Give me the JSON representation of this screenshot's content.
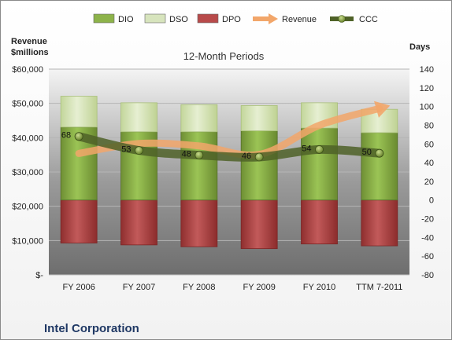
{
  "company": "Intel Corporation",
  "chart_data": {
    "type": "bar",
    "title": "12-Month Periods",
    "left_axis_label": "Revenue\n$millions",
    "right_axis_label": "Days",
    "categories": [
      "FY 2006",
      "FY 2007",
      "FY 2008",
      "FY 2009",
      "FY 2010",
      "TTM 7-2011"
    ],
    "legend_position": "top",
    "legend": [
      {
        "name": "DIO",
        "kind": "bar",
        "color": "#8db34a"
      },
      {
        "name": "DSO",
        "kind": "bar",
        "color": "#d7e4bd"
      },
      {
        "name": "DPO",
        "kind": "bar",
        "color": "#b84a4a"
      },
      {
        "name": "Revenue",
        "kind": "arrow",
        "color": "#f2a66a"
      },
      {
        "name": "CCC",
        "kind": "line",
        "color": "#4f6228"
      }
    ],
    "left_axis": {
      "min": 0,
      "max": 60000,
      "step": 10000,
      "tick_labels": [
        "$-",
        "$10,000",
        "$20,000",
        "$30,000",
        "$40,000",
        "$50,000",
        "$60,000"
      ]
    },
    "right_axis": {
      "min": -80,
      "max": 140,
      "step": 20,
      "tick_labels": [
        "-80",
        "-60",
        "-40",
        "-20",
        "0",
        "20",
        "40",
        "60",
        "80",
        "100",
        "120",
        "140"
      ]
    },
    "series": [
      {
        "name": "DIO",
        "axis": "days",
        "values": [
          78,
          73,
          73,
          74,
          77,
          72
        ]
      },
      {
        "name": "DSO",
        "axis": "days",
        "values": [
          33,
          31,
          29,
          27,
          27,
          25
        ]
      },
      {
        "name": "DPO",
        "axis": "days",
        "values": [
          -46,
          -48,
          -50,
          -52,
          -47,
          -49
        ]
      },
      {
        "name": "Revenue",
        "axis": "revenue",
        "values": [
          35400,
          38300,
          37600,
          35100,
          43600,
          48500
        ]
      },
      {
        "name": "CCC",
        "axis": "days",
        "values": [
          68,
          53,
          48,
          46,
          54,
          50
        ]
      }
    ],
    "ccc_labels": [
      "68",
      "53",
      "48",
      "46",
      "54",
      "50"
    ],
    "grid": true
  }
}
